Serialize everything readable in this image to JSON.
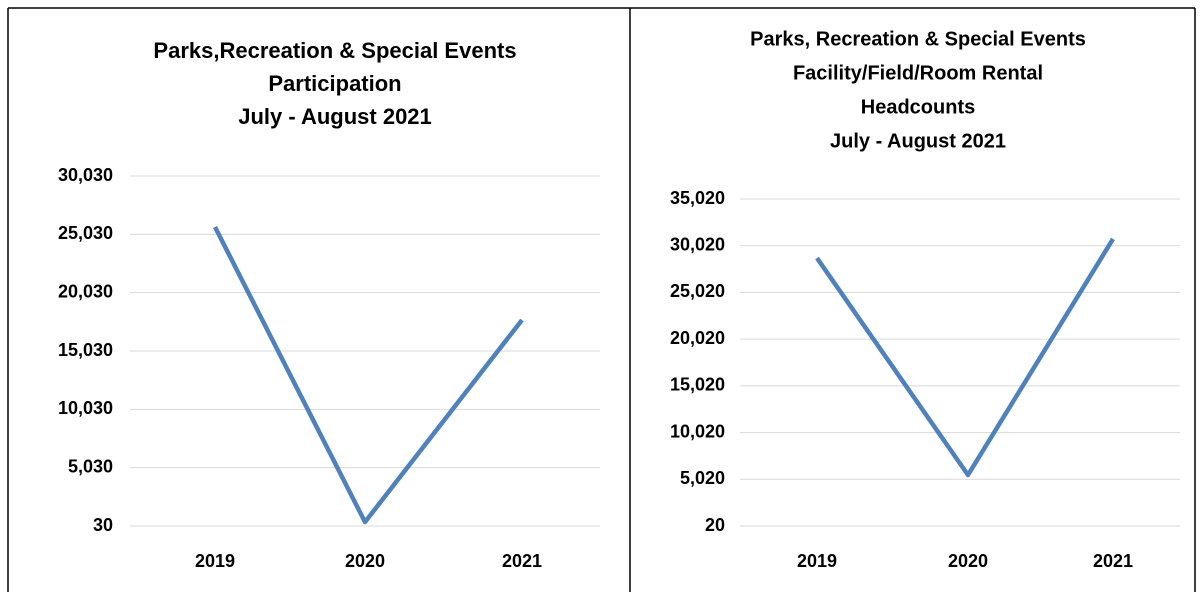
{
  "chart_data": [
    {
      "type": "line",
      "title": [
        "Parks,Recreation & Special Events",
        "Participation",
        "July - August 2021"
      ],
      "categories": [
        "2019",
        "2020",
        "2021"
      ],
      "series": [
        {
          "color": "#4f81bd",
          "values": [
            25660,
            370,
            17690
          ]
        }
      ],
      "ylim": [
        30,
        30030
      ],
      "yticks": [
        30,
        {
          "value": 5030,
          "label": "5,030"
        },
        {
          "value": 10030,
          "label": "10,030"
        },
        {
          "value": 15030,
          "label": "15,030"
        },
        {
          "value": 20030,
          "label": "20,030"
        },
        {
          "value": 25030,
          "label": "25,030"
        },
        {
          "value": 30030,
          "label": "30,030"
        }
      ],
      "grid": true
    },
    {
      "type": "line",
      "title": [
        "Parks, Recreation & Special Events",
        "Facility/Field/Room Rental",
        "Headcounts",
        "July - August 2021"
      ],
      "categories": [
        "2019",
        "2020",
        "2021"
      ],
      "series": [
        {
          "color": "#4f81bd",
          "values": [
            28700,
            5480,
            30740
          ]
        }
      ],
      "ylim": [
        20,
        35020
      ],
      "yticks": [
        20,
        {
          "value": 5020,
          "label": "5,020"
        },
        {
          "value": 10020,
          "label": "10,020"
        },
        {
          "value": 15020,
          "label": "15,020"
        },
        {
          "value": 20020,
          "label": "20,020"
        },
        {
          "value": 25020,
          "label": "25,020"
        },
        {
          "value": 30020,
          "label": "30,020"
        },
        {
          "value": 35020,
          "label": "35,020"
        }
      ],
      "grid": true
    }
  ]
}
